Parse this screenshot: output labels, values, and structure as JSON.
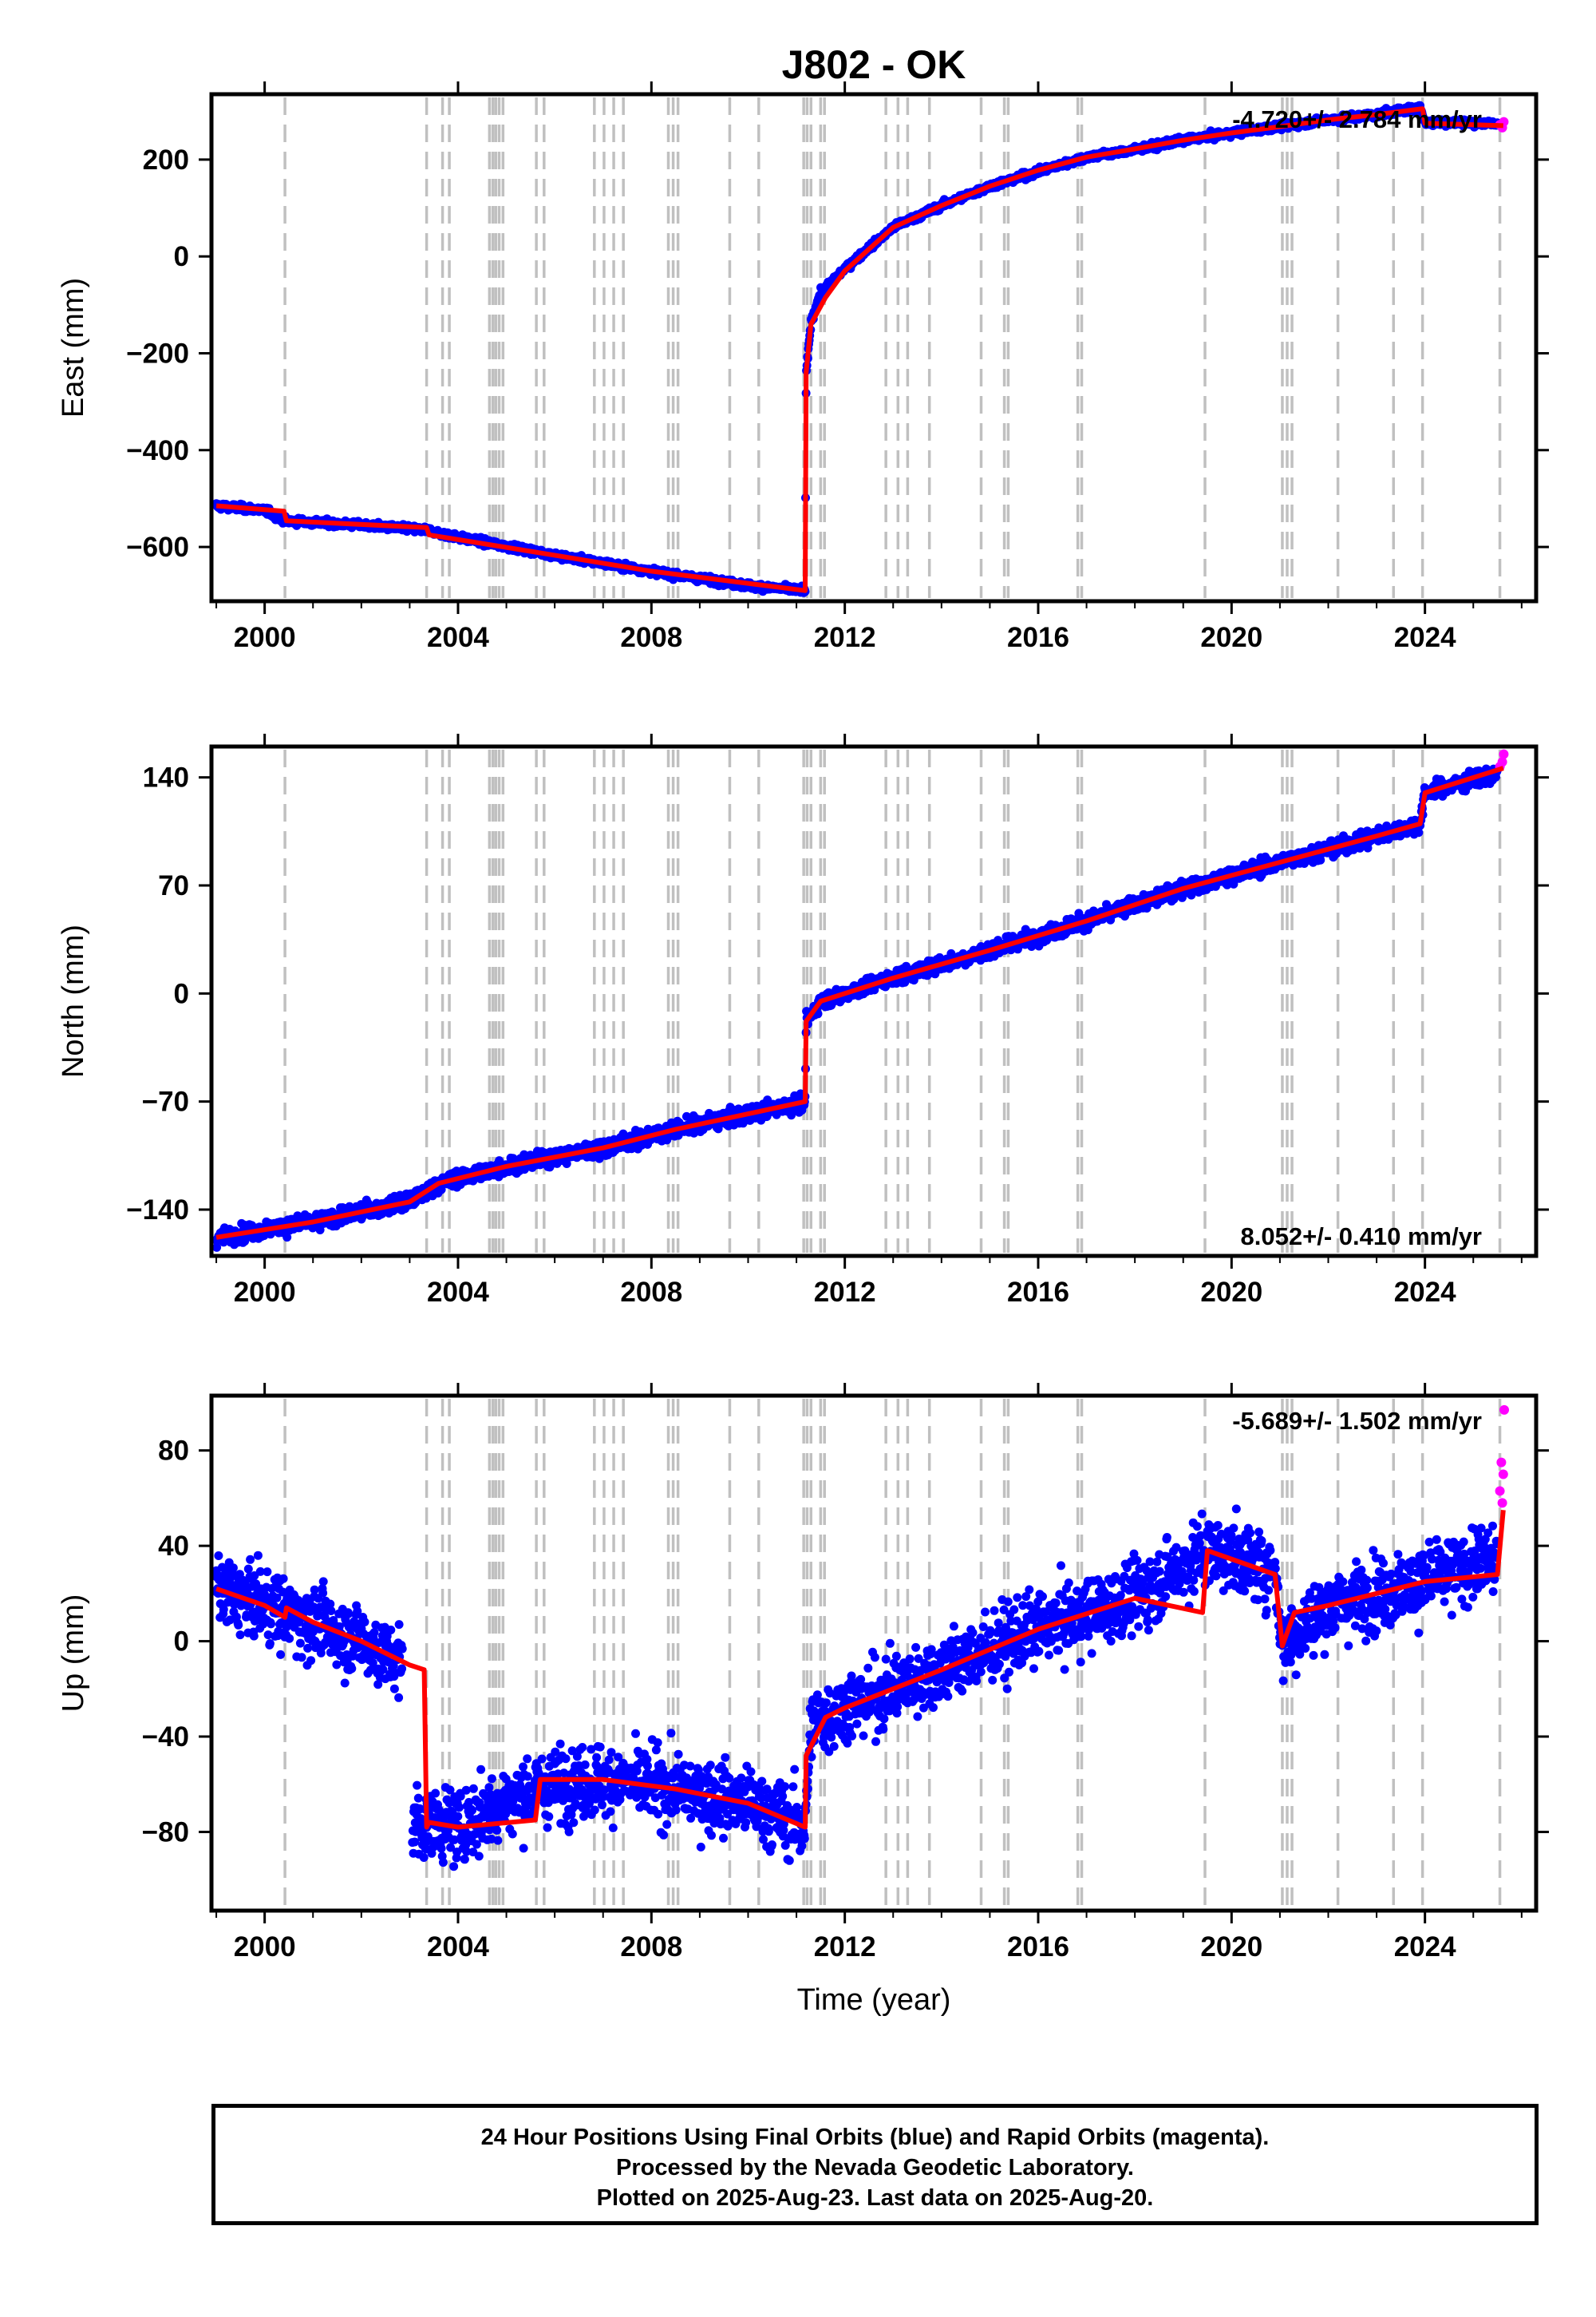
{
  "title": "J802 - OK",
  "xlabel": "Time (year)",
  "colors": {
    "final_points": "#0000ff",
    "rapid_points": "#ff00ff",
    "model_line": "#ff0000",
    "event_lines": "#c0c0c0"
  },
  "event_years": [
    2000.42,
    2003.35,
    2003.68,
    2003.82,
    2004.65,
    2004.72,
    2004.78,
    2004.85,
    2004.93,
    2005.62,
    2005.78,
    2006.82,
    2007.02,
    2007.22,
    2007.42,
    2008.35,
    2008.45,
    2008.55,
    2009.62,
    2010.22,
    2011.15,
    2011.22,
    2011.3,
    2011.5,
    2011.58,
    2012.85,
    2013.1,
    2013.3,
    2013.75,
    2014.82,
    2015.3,
    2015.38,
    2016.82,
    2016.9,
    2019.45,
    2021.05,
    2021.15,
    2021.25,
    2022.2,
    2023.35,
    2023.95,
    2025.55
  ],
  "footer": {
    "line1": "24 Hour Positions Using Final Orbits (blue) and Rapid Orbits (magenta).",
    "line2": "Processed by the Nevada Geodetic Laboratory.",
    "line3": "Plotted on 2025-Aug-23. Last data on 2025-Aug-20."
  },
  "chart_data": [
    {
      "type": "scatter",
      "ylabel": "East (mm)",
      "xlim": [
        1998.9,
        2026.3
      ],
      "ylim": [
        -712,
        335
      ],
      "xticks": [
        2000,
        2004,
        2008,
        2012,
        2016,
        2020,
        2024
      ],
      "yticks": [
        200,
        0,
        -200,
        -400,
        -600
      ],
      "rate_label": "-4.720+/- 2.784 mm/yr",
      "rate_position": "top-right",
      "series": [
        {
          "kind": "final",
          "scatter": 6,
          "x": [
            1999.0,
            2000.0,
            2000.42,
            2002.0,
            2003.35,
            2004.0,
            2006.0,
            2008.0,
            2010.0,
            2011.18,
            2011.2,
            2011.3,
            2011.5,
            2012.0,
            2013.0,
            2014.0,
            2015.0,
            2016.0,
            2017.0,
            2018.0,
            2019.0,
            2020.0,
            2021.0,
            2022.0,
            2023.0,
            2023.9,
            2024.0,
            2025.0,
            2025.5
          ],
          "y": [
            -515,
            -524,
            -546,
            -555,
            -565,
            -580,
            -617,
            -650,
            -680,
            -690,
            -245,
            -135,
            -75,
            -25,
            60,
            105,
            145,
            175,
            205,
            220,
            240,
            255,
            268,
            282,
            293,
            308,
            277,
            276,
            274
          ]
        },
        {
          "kind": "rapid",
          "x": [
            2025.55,
            2025.6,
            2025.63
          ],
          "y": [
            272,
            266,
            278
          ]
        }
      ],
      "model": {
        "x": [
          1999.0,
          2000.4,
          2000.45,
          2003.35,
          2003.4,
          2006.0,
          2008.0,
          2011.18,
          2011.2,
          2011.3,
          2011.6,
          2012.0,
          2013.0,
          2014.0,
          2015.0,
          2016.0,
          2017.0,
          2018.0,
          2019.0,
          2020.0,
          2021.0,
          2022.0,
          2023.0,
          2023.95,
          2024.0,
          2025.62
        ],
        "y": [
          -515,
          -526,
          -546,
          -560,
          -575,
          -617,
          -650,
          -690,
          -240,
          -140,
          -85,
          -30,
          60,
          105,
          145,
          178,
          205,
          222,
          240,
          255,
          268,
          282,
          293,
          305,
          275,
          270
        ]
      }
    },
    {
      "type": "scatter",
      "ylabel": "North (mm)",
      "xlim": [
        1998.9,
        2026.3
      ],
      "ylim": [
        -170,
        160
      ],
      "xticks": [
        2000,
        2004,
        2008,
        2012,
        2016,
        2020,
        2024
      ],
      "yticks": [
        140,
        70,
        0,
        -70,
        -140
      ],
      "rate_label": "8.052+/- 0.410 mm/yr",
      "rate_position": "bottom-right",
      "series": [
        {
          "kind": "final",
          "scatter": 4.5,
          "x": [
            1999.0,
            2001.0,
            2003.0,
            2003.6,
            2005.0,
            2007.0,
            2008.5,
            2010.0,
            2011.18,
            2011.2,
            2011.5,
            2013.0,
            2015.0,
            2017.0,
            2019.0,
            2021.0,
            2023.0,
            2023.9,
            2024.0,
            2025.5
          ],
          "y": [
            -158,
            -148,
            -135,
            -123,
            -112,
            -100,
            -88,
            -78,
            -70,
            -18,
            -5,
            10,
            28,
            47,
            68,
            85,
            102,
            110,
            130,
            143
          ]
        },
        {
          "kind": "rapid",
          "x": [
            2025.55,
            2025.6,
            2025.63
          ],
          "y": [
            147,
            150,
            155
          ]
        }
      ],
      "model": {
        "x": [
          1999.0,
          2001.0,
          2003.0,
          2003.6,
          2005.0,
          2007.0,
          2008.5,
          2010.0,
          2011.18,
          2011.2,
          2011.5,
          2013.0,
          2015.0,
          2017.0,
          2019.0,
          2021.0,
          2023.0,
          2023.9,
          2024.0,
          2025.62
        ],
        "y": [
          -158,
          -148,
          -135,
          -123,
          -112,
          -100,
          -88,
          -78,
          -70,
          -18,
          -5,
          10,
          28,
          47,
          68,
          85,
          102,
          110,
          130,
          146
        ]
      }
    },
    {
      "type": "scatter",
      "ylabel": "Up (mm)",
      "xlim": [
        1998.9,
        2026.3
      ],
      "ylim": [
        -113,
        103
      ],
      "xticks": [
        2000,
        2004,
        2008,
        2012,
        2016,
        2020,
        2024
      ],
      "yticks": [
        80,
        40,
        0,
        -40,
        -80
      ],
      "rate_label": "-5.689+/- 1.502 mm/yr",
      "rate_position": "top-right",
      "series": [
        {
          "kind": "final",
          "scatter": 13,
          "gap": [
            2002.85,
            2003.05
          ],
          "x": [
            1999.0,
            2000.0,
            2001.0,
            2002.0,
            2002.85,
            2003.05,
            2004.0,
            2005.5,
            2007.0,
            2008.5,
            2010.0,
            2011.18,
            2011.3,
            2012.0,
            2014.0,
            2016.0,
            2018.0,
            2019.5,
            2020.9,
            2021.05,
            2022.0,
            2023.0,
            2024.0,
            2025.5
          ],
          "y": [
            22,
            15,
            8,
            0,
            -10,
            -75,
            -78,
            -62,
            -58,
            -62,
            -68,
            -78,
            -35,
            -28,
            -12,
            5,
            18,
            38,
            30,
            -2,
            15,
            20,
            25,
            35
          ]
        },
        {
          "kind": "rapid",
          "x": [
            2025.55,
            2025.58,
            2025.6,
            2025.62,
            2025.64
          ],
          "y": [
            63,
            75,
            58,
            70,
            97
          ]
        }
      ],
      "model": {
        "x": [
          1999.0,
          2000.0,
          2000.42,
          2000.45,
          2001.0,
          2002.0,
          2003.0,
          2003.3,
          2003.35,
          2003.4,
          2004.0,
          2005.6,
          2005.7,
          2007.0,
          2008.5,
          2010.0,
          2011.18,
          2011.2,
          2011.6,
          2012.0,
          2014.0,
          2016.0,
          2018.0,
          2019.4,
          2019.5,
          2020.9,
          2021.05,
          2021.3,
          2022.0,
          2023.0,
          2024.0,
          2025.5,
          2025.62
        ],
        "y": [
          22,
          15,
          10,
          14,
          8,
          0,
          -10,
          -12,
          -78,
          -76,
          -78,
          -75,
          -58,
          -58,
          -62,
          -68,
          -78,
          -48,
          -32,
          -28,
          -12,
          5,
          18,
          12,
          38,
          28,
          -2,
          12,
          15,
          20,
          25,
          28,
          55
        ]
      }
    }
  ]
}
